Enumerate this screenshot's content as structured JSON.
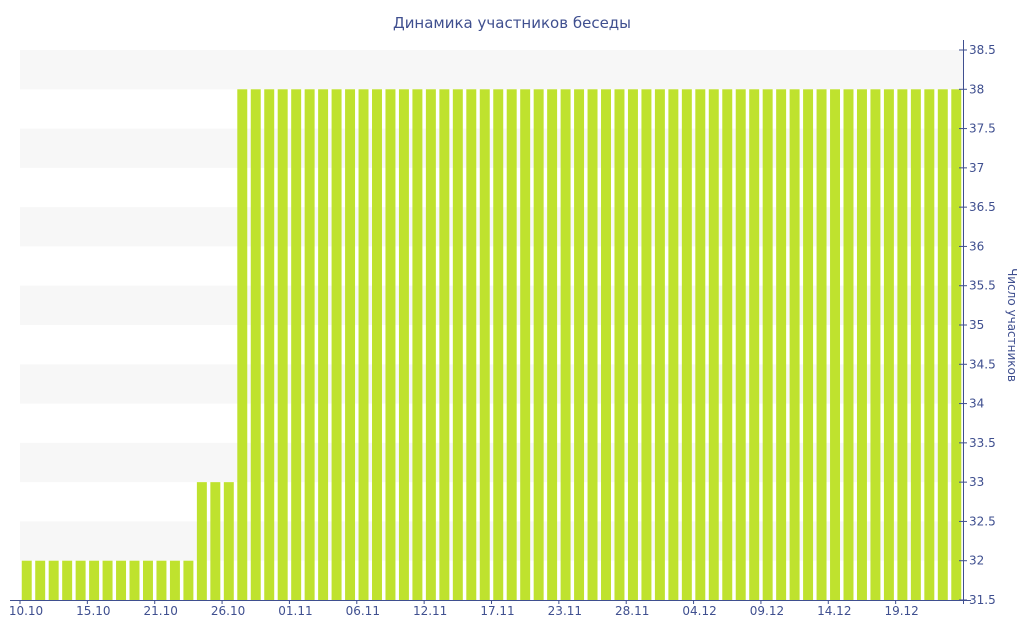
{
  "chart_data": {
    "type": "bar",
    "title": "Динамика участников беседы",
    "ylabel": "Число участников",
    "xlabel": "",
    "ylim": [
      31.5,
      38.5
    ],
    "y_ticks": [
      "31.5",
      "32",
      "32.5",
      "33",
      "33.5",
      "34",
      "34.5",
      "35",
      "35.5",
      "36",
      "36.5",
      "37",
      "37.5",
      "38",
      "38.5"
    ],
    "x_tick_labels": [
      "10.10",
      "15.10",
      "21.10",
      "26.10",
      "01.11",
      "06.11",
      "12.11",
      "17.11",
      "23.11",
      "28.11",
      "04.12",
      "09.12",
      "14.12",
      "19.12"
    ],
    "grid_bands": true,
    "y_axis_position": "right",
    "bar_color": "#bfe22e",
    "band_color": "#f7f7f7",
    "text_color": "#3f4f8f",
    "values": [
      32,
      32,
      32,
      32,
      32,
      32,
      32,
      32,
      32,
      32,
      32,
      32,
      32,
      33,
      33,
      33,
      38,
      38,
      38,
      38,
      38,
      38,
      38,
      38,
      38,
      38,
      38,
      38,
      38,
      38,
      38,
      38,
      38,
      38,
      38,
      38,
      38,
      38,
      38,
      38,
      38,
      38,
      38,
      38,
      38,
      38,
      38,
      38,
      38,
      38,
      38,
      38,
      38,
      38,
      38,
      38,
      38,
      38,
      38,
      38,
      38,
      38,
      38,
      38,
      38,
      38,
      38,
      38,
      38,
      38
    ]
  }
}
